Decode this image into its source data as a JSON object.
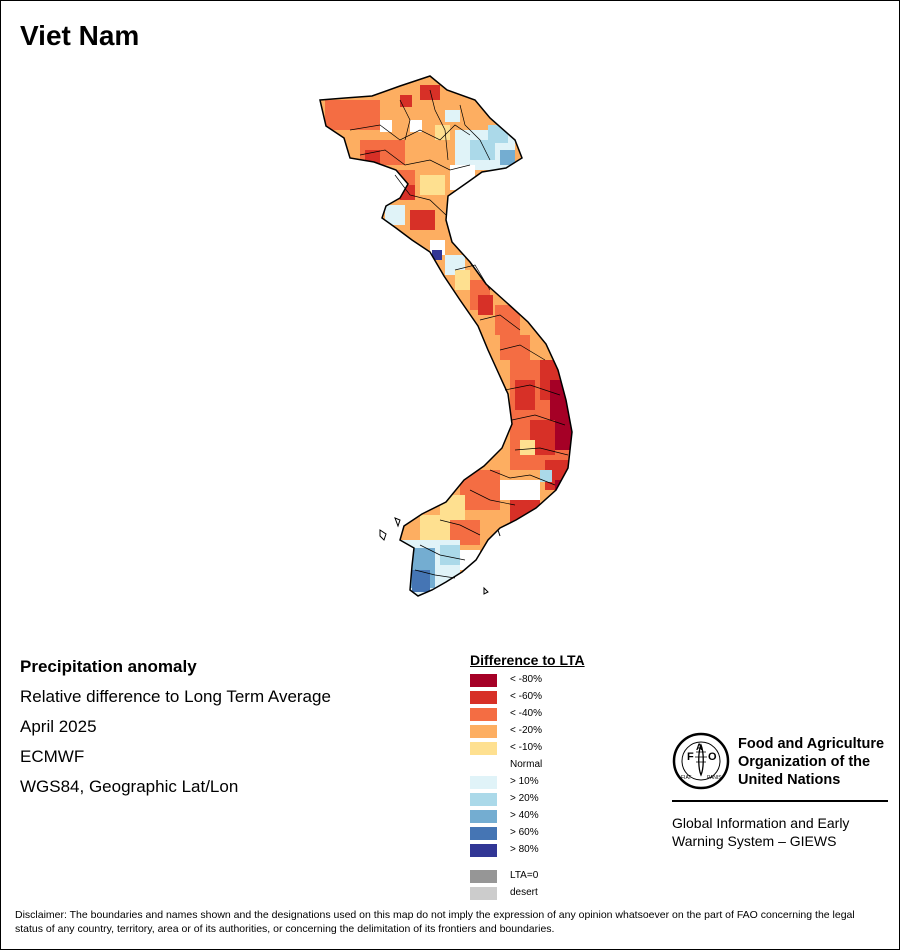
{
  "title": "Viet Nam",
  "info": {
    "heading": "Precipitation anomaly",
    "subtitle": "Relative difference to Long Term Average",
    "period": "April 2025",
    "source": "ECMWF",
    "projection": "WGS84, Geographic Lat/Lon"
  },
  "legend": {
    "title": "Difference to LTA",
    "items": [
      {
        "label": "< -80%",
        "color": "#a50026"
      },
      {
        "label": "< -60%",
        "color": "#d73027"
      },
      {
        "label": "< -40%",
        "color": "#f46d43"
      },
      {
        "label": "< -20%",
        "color": "#fdae61"
      },
      {
        "label": "< -10%",
        "color": "#fee090"
      },
      {
        "label": "Normal",
        "color": "#ffffff"
      },
      {
        "label": "> 10%",
        "color": "#e0f3f8"
      },
      {
        "label": "> 20%",
        "color": "#abd9e9"
      },
      {
        "label": "> 40%",
        "color": "#74add1"
      },
      {
        "label": "> 60%",
        "color": "#4575b4"
      },
      {
        "label": "> 80%",
        "color": "#313695"
      }
    ],
    "extra": [
      {
        "label": "LTA=0",
        "color": "#969696"
      },
      {
        "label": "desert",
        "color": "#cccccc"
      }
    ]
  },
  "fao": {
    "name_line1": "Food and Agriculture",
    "name_line2": "Organization of the",
    "name_line3": "United Nations",
    "giews_line1": "Global Information and Early",
    "giews_line2": "Warning System – GIEWS",
    "logo_text": "FAO",
    "motto": "FIAT PANIS"
  },
  "disclaimer": "Disclaimer: The boundaries and names shown and the designations used on this map do not imply the expression of any opinion whatsoever on the part of FAO concerning the legal status of any country, territory, area or of its authorities, or concerning the delimitation of its frontiers and boundaries."
}
